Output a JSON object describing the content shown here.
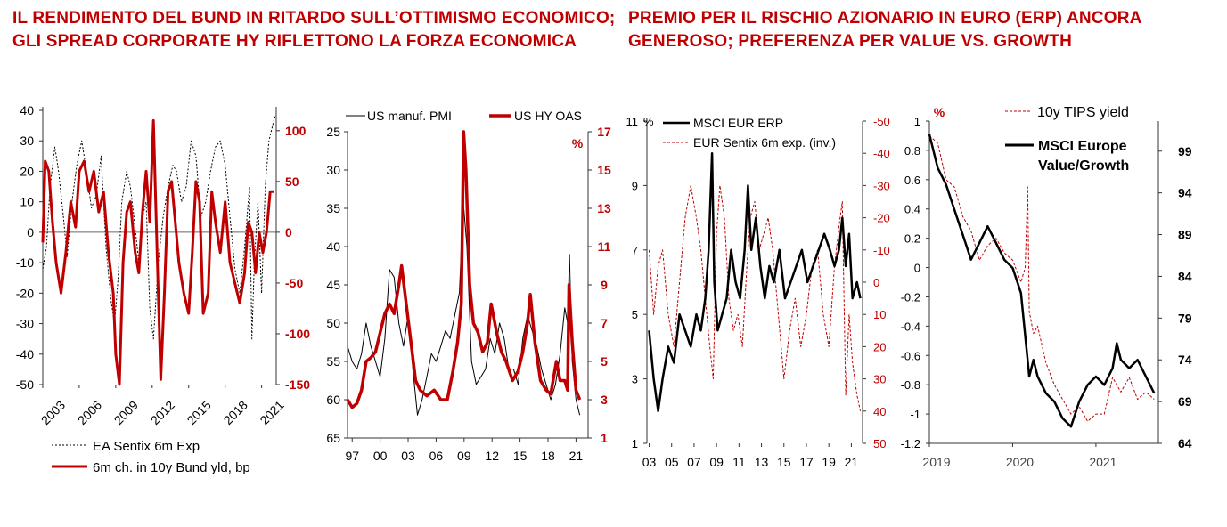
{
  "headlines": {
    "left": "IL RENDIMENTO DEL BUND IN RITARDO SULL’OTTIMISMO ECONOMICO; GLI SPREAD CORPORATE HY RIFLETTONO LA FORZA ECONOMICA",
    "right": "PREMIO PER IL RISCHIO AZIONARIO IN EURO (ERP) ANCORA GENEROSO; PREFERENZA PER VALUE VS. GROWTH"
  },
  "colors": {
    "red": "#c00000",
    "black": "#000000",
    "axis": "#333333",
    "headline": "#c00000"
  },
  "chart_data": [
    {
      "type": "line",
      "id": "chart1",
      "x_ticks": [
        "2003",
        "2006",
        "2009",
        "2012",
        "2015",
        "2018",
        "2021"
      ],
      "x_range": [
        2003,
        2022.2
      ],
      "left_axis": {
        "ticks": [
          "40",
          "30",
          "20",
          "10",
          "0",
          "-10",
          "-20",
          "-30",
          "-40",
          "-50"
        ],
        "range": [
          -50,
          40
        ]
      },
      "right_axis": {
        "ticks": [
          "100",
          "50",
          "0",
          "-50",
          "-100",
          "-150"
        ],
        "range": [
          -150,
          120
        ]
      },
      "series": [
        {
          "name": "EA Sentix 6m Exp",
          "axis": "left",
          "style": "dotted-black",
          "x": [
            2003.0,
            2003.3,
            2003.6,
            2004.0,
            2004.3,
            2004.7,
            2005.0,
            2005.4,
            2005.8,
            2006.2,
            2006.6,
            2007.0,
            2007.4,
            2007.8,
            2008.2,
            2008.6,
            2008.9,
            2009.2,
            2009.5,
            2009.9,
            2010.2,
            2010.5,
            2010.9,
            2011.2,
            2011.5,
            2011.8,
            2012.1,
            2012.5,
            2012.9,
            2013.3,
            2013.7,
            2014.0,
            2014.4,
            2014.8,
            2015.2,
            2015.6,
            2016.0,
            2016.4,
            2016.8,
            2017.2,
            2017.6,
            2018.0,
            2018.4,
            2018.8,
            2019.2,
            2019.6,
            2020.0,
            2020.2,
            2020.4,
            2020.7,
            2021.0,
            2021.3,
            2021.6,
            2021.9,
            2022.1
          ],
          "y": [
            -12,
            -5,
            15,
            28,
            20,
            5,
            -8,
            10,
            22,
            30,
            20,
            8,
            12,
            25,
            -5,
            -22,
            -30,
            -15,
            10,
            20,
            15,
            5,
            -10,
            5,
            10,
            -25,
            -35,
            -10,
            5,
            15,
            22,
            20,
            10,
            15,
            30,
            25,
            5,
            10,
            20,
            28,
            30,
            22,
            5,
            -12,
            -20,
            -5,
            15,
            -35,
            -10,
            10,
            -20,
            15,
            30,
            35,
            38
          ]
        },
        {
          "name": "6m ch. in 10y Bund yld, bp",
          "axis": "right",
          "style": "solid-red",
          "x": [
            2003.0,
            2003.2,
            2003.5,
            2003.8,
            2004.1,
            2004.5,
            2004.9,
            2005.3,
            2005.7,
            2006.0,
            2006.4,
            2006.8,
            2007.2,
            2007.6,
            2008.0,
            2008.4,
            2008.8,
            2009.0,
            2009.3,
            2009.6,
            2009.9,
            2010.2,
            2010.6,
            2010.9,
            2011.2,
            2011.5,
            2011.8,
            2012.1,
            2012.4,
            2012.7,
            2013.0,
            2013.3,
            2013.6,
            2013.9,
            2014.2,
            2014.6,
            2015.0,
            2015.3,
            2015.6,
            2015.9,
            2016.2,
            2016.6,
            2016.9,
            2017.2,
            2017.6,
            2018.0,
            2018.4,
            2018.8,
            2019.2,
            2019.6,
            2019.9,
            2020.2,
            2020.5,
            2020.8,
            2021.1,
            2021.4,
            2021.7,
            2022.0
          ],
          "y": [
            -10,
            70,
            60,
            10,
            -30,
            -60,
            -20,
            30,
            5,
            60,
            70,
            40,
            60,
            20,
            40,
            -20,
            -60,
            -120,
            -150,
            -30,
            20,
            30,
            -20,
            -40,
            20,
            60,
            10,
            110,
            -20,
            -145,
            -60,
            40,
            50,
            10,
            -30,
            -60,
            -80,
            -20,
            50,
            30,
            -80,
            -60,
            40,
            10,
            -20,
            30,
            -30,
            -50,
            -70,
            -40,
            10,
            0,
            -40,
            0,
            -20,
            0,
            40,
            40
          ]
        }
      ]
    },
    {
      "type": "line",
      "id": "chart2",
      "x_ticks": [
        "97",
        "00",
        "03",
        "06",
        "09",
        "12",
        "15",
        "18",
        "21"
      ],
      "x_range": [
        1996.5,
        2022.3
      ],
      "left_axis": {
        "ticks": [
          "25",
          "30",
          "35",
          "40",
          "45",
          "50",
          "55",
          "60",
          "65"
        ],
        "range": [
          65,
          25
        ],
        "inverted": true
      },
      "right_axis": {
        "ticks": [
          "17",
          "15",
          "13",
          "11",
          "9",
          "7",
          "5",
          "3",
          "1"
        ],
        "range": [
          1,
          17
        ],
        "unit": "%"
      },
      "series": [
        {
          "name": "US manuf. PMI",
          "axis": "left",
          "style": "thin-black",
          "x": [
            1996.5,
            1997.0,
            1997.5,
            1998.0,
            1998.5,
            1999.0,
            1999.5,
            2000.0,
            2000.5,
            2001.0,
            2001.5,
            2002.0,
            2002.5,
            2003.0,
            2003.5,
            2004.0,
            2004.5,
            2005.0,
            2005.5,
            2006.0,
            2006.5,
            2007.0,
            2007.5,
            2008.0,
            2008.5,
            2008.9,
            2009.3,
            2009.8,
            2010.3,
            2010.8,
            2011.3,
            2011.8,
            2012.3,
            2012.8,
            2013.3,
            2013.8,
            2014.3,
            2014.8,
            2015.3,
            2015.8,
            2016.3,
            2016.8,
            2017.3,
            2017.8,
            2018.3,
            2018.8,
            2019.3,
            2019.8,
            2020.1,
            2020.3,
            2020.6,
            2021.0,
            2021.4
          ],
          "y": [
            53,
            55,
            56,
            54,
            50,
            53,
            55,
            57,
            52,
            43,
            44,
            50,
            53,
            49,
            56,
            62,
            60,
            57,
            54,
            55,
            53,
            51,
            52,
            49,
            46,
            34,
            40,
            55,
            58,
            57,
            56,
            52,
            54,
            50,
            52,
            56,
            56,
            58,
            52,
            49,
            51,
            53,
            56,
            58,
            60,
            58,
            54,
            48,
            50,
            41,
            55,
            60,
            62
          ]
        },
        {
          "name": "US HY OAS",
          "axis": "right",
          "style": "thick-red",
          "x": [
            1996.5,
            1997.0,
            1997.5,
            1998.0,
            1998.5,
            1999.0,
            1999.5,
            2000.0,
            2000.5,
            2001.0,
            2001.5,
            2002.0,
            2002.3,
            2002.8,
            2003.3,
            2003.8,
            2004.3,
            2005.0,
            2005.8,
            2006.5,
            2007.2,
            2007.8,
            2008.3,
            2008.7,
            2008.95,
            2009.2,
            2009.6,
            2010.0,
            2010.5,
            2011.0,
            2011.5,
            2011.9,
            2012.5,
            2013.0,
            2013.5,
            2014.2,
            2014.8,
            2015.3,
            2015.8,
            2016.1,
            2016.6,
            2017.2,
            2017.8,
            2018.3,
            2018.9,
            2019.3,
            2019.8,
            2020.1,
            2020.25,
            2020.6,
            2021.0,
            2021.4
          ],
          "y": [
            3.0,
            2.6,
            2.8,
            3.5,
            5.0,
            5.2,
            5.5,
            6.5,
            7.5,
            8.0,
            7.5,
            9.0,
            10.0,
            8.0,
            6.0,
            4.0,
            3.5,
            3.2,
            3.5,
            3.0,
            3.0,
            4.5,
            6.0,
            8.0,
            17.0,
            15.0,
            9.0,
            7.0,
            6.5,
            5.5,
            6.0,
            8.0,
            6.5,
            5.5,
            5.0,
            4.0,
            4.5,
            5.5,
            7.0,
            8.5,
            6.0,
            4.0,
            3.5,
            3.3,
            5.0,
            4.0,
            4.0,
            3.5,
            9.0,
            6.0,
            3.5,
            3.0
          ]
        }
      ]
    },
    {
      "type": "line",
      "id": "chart3",
      "x_ticks": [
        "03",
        "05",
        "07",
        "09",
        "11",
        "13",
        "15",
        "17",
        "19",
        "21"
      ],
      "x_range": [
        2002.8,
        2022.0
      ],
      "left_axis": {
        "ticks": [
          "11",
          "9",
          "7",
          "5",
          "3",
          "1"
        ],
        "range": [
          1,
          11
        ],
        "unit": "%"
      },
      "right_axis": {
        "ticks": [
          "-50",
          "-40",
          "-30",
          "-20",
          "-10",
          "0",
          "10",
          "20",
          "30",
          "40",
          "50"
        ],
        "range": [
          50,
          -50
        ],
        "inverted": true
      },
      "series": [
        {
          "name": "MSCI EUR ERP",
          "axis": "left",
          "style": "thick-black",
          "x": [
            2003.0,
            2003.4,
            2003.8,
            2004.2,
            2004.7,
            2005.2,
            2005.7,
            2006.2,
            2006.7,
            2007.2,
            2007.6,
            2008.0,
            2008.3,
            2008.6,
            2008.8,
            2009.1,
            2009.5,
            2009.9,
            2010.3,
            2010.7,
            2011.1,
            2011.5,
            2011.8,
            2012.1,
            2012.5,
            2012.9,
            2013.3,
            2013.7,
            2014.1,
            2014.6,
            2015.1,
            2015.6,
            2016.1,
            2016.6,
            2017.1,
            2017.6,
            2018.1,
            2018.6,
            2019.1,
            2019.5,
            2019.9,
            2020.2,
            2020.5,
            2020.8,
            2021.1,
            2021.5,
            2021.8
          ],
          "y": [
            4.5,
            3.0,
            2.0,
            3.0,
            4.0,
            3.5,
            5.0,
            4.5,
            4.0,
            5.0,
            4.5,
            5.5,
            7.0,
            10.0,
            6.0,
            4.5,
            5.0,
            5.5,
            7.0,
            6.0,
            5.5,
            7.0,
            9.0,
            7.0,
            8.0,
            6.5,
            5.5,
            6.5,
            6.0,
            7.0,
            5.5,
            6.0,
            6.5,
            7.0,
            6.0,
            6.5,
            7.0,
            7.5,
            7.0,
            6.5,
            7.0,
            8.0,
            6.5,
            7.5,
            5.5,
            6.0,
            5.5
          ]
        },
        {
          "name": "EUR Sentix 6m exp. (inv.)",
          "axis": "right",
          "style": "dashed-red",
          "x": [
            2003.0,
            2003.4,
            2003.8,
            2004.2,
            2004.7,
            2005.2,
            2005.7,
            2006.2,
            2006.7,
            2007.2,
            2007.6,
            2008.0,
            2008.4,
            2008.7,
            2009.0,
            2009.3,
            2009.7,
            2010.1,
            2010.5,
            2010.9,
            2011.3,
            2011.7,
            2012.0,
            2012.4,
            2012.8,
            2013.2,
            2013.6,
            2014.0,
            2014.5,
            2015.0,
            2015.5,
            2016.0,
            2016.5,
            2017.0,
            2017.5,
            2018.0,
            2018.5,
            2019.0,
            2019.5,
            2020.0,
            2020.2,
            2020.5,
            2020.8,
            2021.1,
            2021.5,
            2021.8
          ],
          "y": [
            -10,
            10,
            -5,
            -10,
            10,
            20,
            0,
            -20,
            -30,
            -20,
            -10,
            5,
            20,
            30,
            -15,
            -30,
            -20,
            5,
            15,
            10,
            20,
            -5,
            -20,
            -25,
            -10,
            -15,
            -20,
            -10,
            10,
            30,
            15,
            5,
            20,
            10,
            -5,
            -10,
            10,
            20,
            -5,
            -20,
            -25,
            35,
            10,
            25,
            35,
            40
          ]
        }
      ]
    },
    {
      "type": "line",
      "id": "chart4",
      "x_ticks": [
        "2019",
        "2020",
        "2021"
      ],
      "x_range": [
        2019.0,
        2021.75
      ],
      "left_axis": {
        "ticks": [
          "1",
          "0.8",
          "0.6",
          "0.4",
          "0.2",
          "0",
          "-0.2",
          "-0.4",
          "-0.6",
          "-0.8",
          "-1",
          "-1.2"
        ],
        "range": [
          -1.2,
          1
        ],
        "unit": "%"
      },
      "right_axis": {
        "ticks": [
          "99",
          "94",
          "89",
          "84",
          "79",
          "74",
          "69",
          "64"
        ],
        "range": [
          64,
          102.6
        ]
      },
      "series": [
        {
          "name": "10y TIPS yield",
          "axis": "left",
          "style": "dashed-red",
          "x": [
            2019.0,
            2019.1,
            2019.2,
            2019.3,
            2019.4,
            2019.5,
            2019.6,
            2019.7,
            2019.8,
            2019.9,
            2020.0,
            2020.1,
            2020.15,
            2020.18,
            2020.2,
            2020.25,
            2020.3,
            2020.4,
            2020.5,
            2020.6,
            2020.7,
            2020.8,
            2020.9,
            2021.0,
            2021.1,
            2021.2,
            2021.3,
            2021.4,
            2021.5,
            2021.6,
            2021.7
          ],
          "y": [
            0.9,
            0.85,
            0.6,
            0.55,
            0.35,
            0.25,
            0.05,
            0.15,
            0.2,
            0.1,
            0.05,
            -0.1,
            0.0,
            0.55,
            -0.3,
            -0.45,
            -0.4,
            -0.65,
            -0.8,
            -0.9,
            -1.0,
            -0.95,
            -1.05,
            -1.0,
            -1.0,
            -0.75,
            -0.85,
            -0.75,
            -0.9,
            -0.85,
            -0.9
          ]
        },
        {
          "name": "MSCI Europe Value/Growth",
          "axis": "right",
          "style": "thick-black",
          "x": [
            2019.0,
            2019.1,
            2019.2,
            2019.3,
            2019.4,
            2019.5,
            2019.6,
            2019.7,
            2019.8,
            2019.9,
            2020.0,
            2020.1,
            2020.2,
            2020.25,
            2020.3,
            2020.4,
            2020.5,
            2020.6,
            2020.7,
            2020.8,
            2020.9,
            2021.0,
            2021.1,
            2021.2,
            2021.25,
            2021.3,
            2021.4,
            2021.5,
            2021.6,
            2021.7
          ],
          "y": [
            101,
            97,
            95,
            92,
            89,
            86,
            88,
            90,
            88,
            86,
            85,
            82,
            72,
            74,
            72,
            70,
            69,
            67,
            66,
            69,
            71,
            72,
            71,
            73,
            76,
            74,
            73,
            74,
            72,
            70
          ]
        }
      ]
    }
  ]
}
